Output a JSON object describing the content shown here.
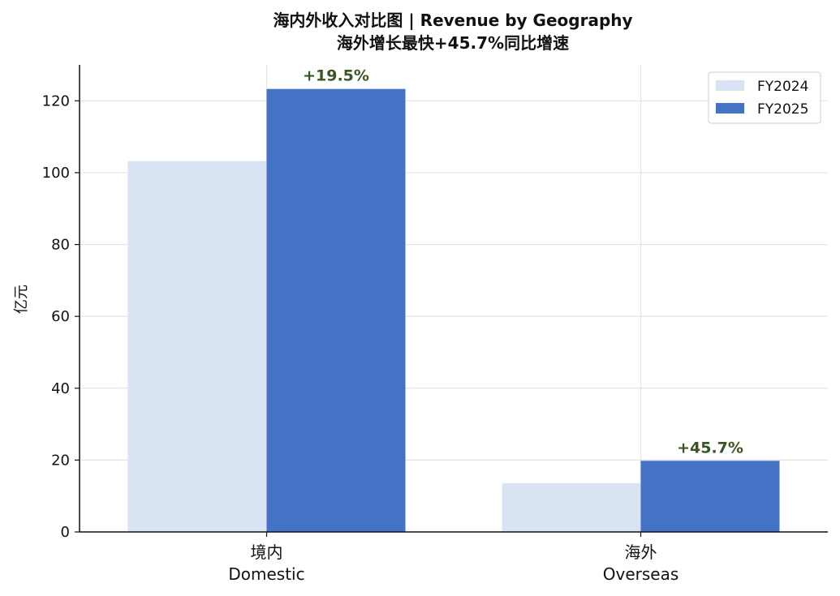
{
  "chart_data": {
    "type": "bar",
    "title": "海内外收入对比图  |  Revenue by Geography",
    "subtitle": "海外增长最快+45.7%同比增速",
    "ylabel": "亿元",
    "xlabel": "",
    "categories": [
      "境内\nDomestic",
      "海外\nOverseas"
    ],
    "category_lines": [
      [
        "境内",
        "Domestic"
      ],
      [
        "海外",
        "Overseas"
      ]
    ],
    "series": [
      {
        "name": "FY2024",
        "values": [
          103.2,
          13.6
        ],
        "color": "#dae3f3"
      },
      {
        "name": "FY2025",
        "values": [
          123.3,
          19.8
        ],
        "color": "#4472c4"
      }
    ],
    "annotations": [
      "+19.5%",
      "+45.7%"
    ],
    "annotation_color": "#375623",
    "ylim": [
      0,
      130
    ],
    "yticks": [
      0,
      20,
      40,
      60,
      80,
      100,
      120
    ],
    "grid": true,
    "legend_position": "top-right"
  }
}
